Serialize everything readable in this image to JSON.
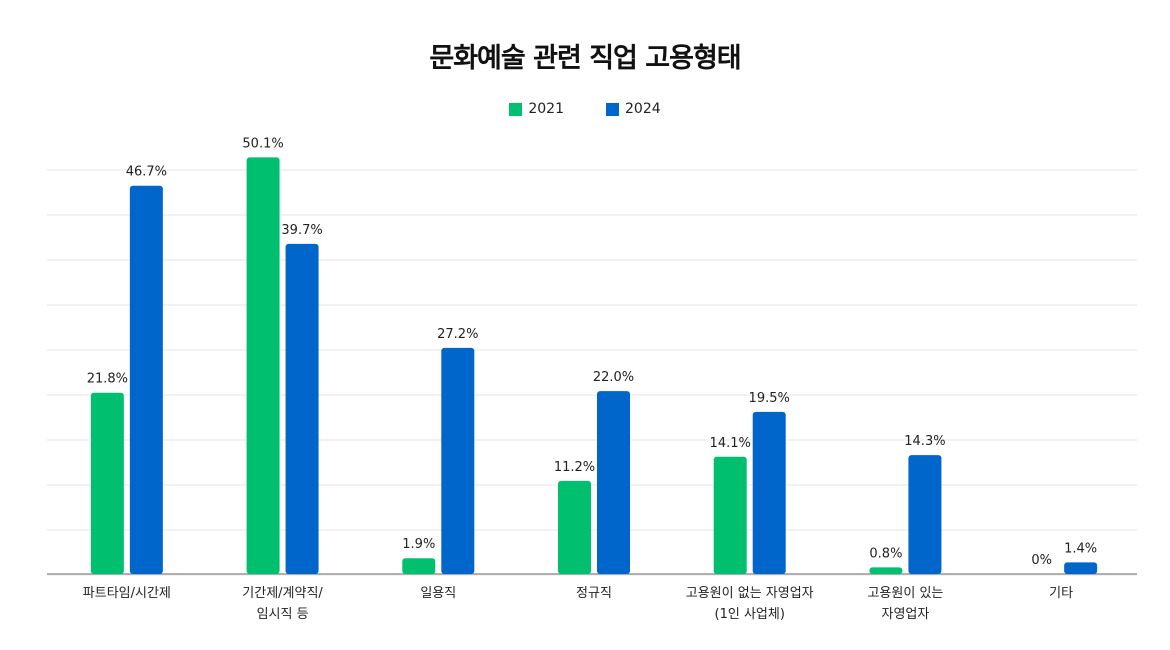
{
  "chart_data": {
    "type": "bar",
    "title": "문화예술 관련 직업 고용형태",
    "xlabel": "",
    "ylabel": "",
    "ylim": [
      0,
      54
    ],
    "grid": true,
    "legend_position": "top-center",
    "categories": [
      [
        "파트타임/시간제"
      ],
      [
        "기간제/계약직/",
        "임시직 등"
      ],
      [
        "일용직"
      ],
      [
        "정규직"
      ],
      [
        "고용원이 없는 자영업자",
        "(1인 사업체)"
      ],
      [
        "고용원이 있는",
        "자영업자"
      ],
      [
        "기타"
      ]
    ],
    "series": [
      {
        "name": "2021",
        "color": "#00c070",
        "values": [
          21.8,
          50.1,
          1.9,
          11.2,
          14.1,
          0.8,
          0
        ],
        "labels": [
          "21.8%",
          "50.1%",
          "1.9%",
          "11.2%",
          "14.1%",
          "0.8%",
          "0%"
        ]
      },
      {
        "name": "2024",
        "color": "#0066cc",
        "values": [
          46.7,
          39.7,
          27.2,
          22.0,
          19.5,
          14.3,
          1.4
        ],
        "labels": [
          "46.7%",
          "39.7%",
          "27.2%",
          "22.0%",
          "19.5%",
          "14.3%",
          "1.4%"
        ]
      }
    ]
  }
}
